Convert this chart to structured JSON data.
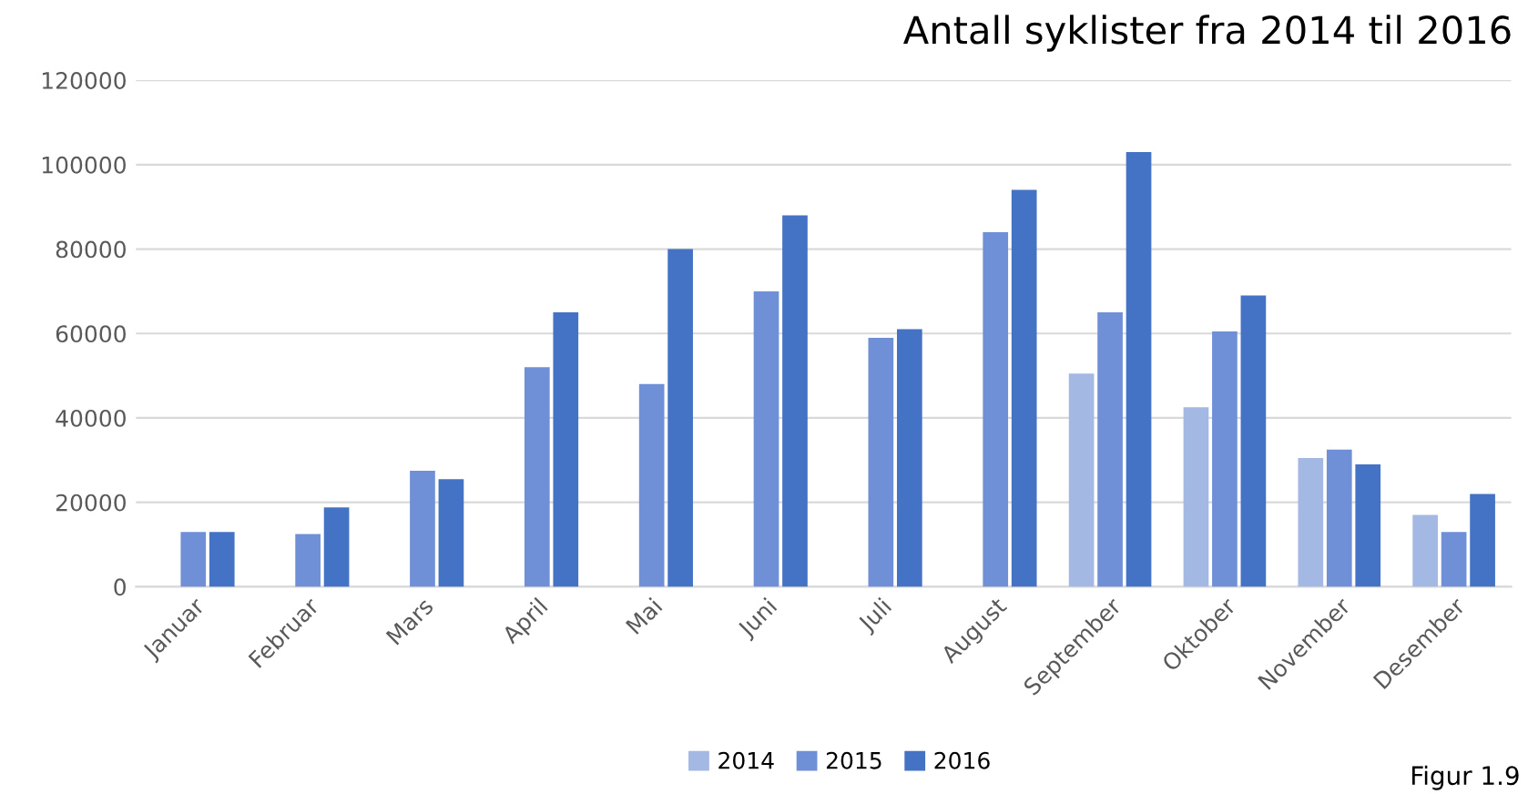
{
  "chart_data": {
    "type": "bar",
    "title": "Antall syklister fra 2014 til 2016",
    "categories": [
      "Januar",
      "Februar",
      "Mars",
      "April",
      "Mai",
      "Juni",
      "Juli",
      "August",
      "September",
      "Oktober",
      "November",
      "Desember"
    ],
    "series": [
      {
        "name": "2014",
        "color": "#a3b9e3",
        "values": [
          null,
          null,
          null,
          null,
          null,
          null,
          null,
          null,
          50500,
          42500,
          30500,
          17000
        ]
      },
      {
        "name": "2015",
        "color": "#6f8fd6",
        "values": [
          13000,
          12500,
          27500,
          52000,
          48000,
          70000,
          59000,
          84000,
          65000,
          60500,
          32500,
          13000
        ]
      },
      {
        "name": "2016",
        "color": "#4472c4",
        "values": [
          13000,
          18800,
          25500,
          65000,
          80000,
          88000,
          61000,
          94000,
          103000,
          69000,
          29000,
          22000
        ]
      }
    ],
    "ylim": [
      0,
      120000
    ],
    "yticks": [
      0,
      20000,
      40000,
      60000,
      80000,
      100000,
      120000
    ],
    "grid": "y",
    "legend": "bottom",
    "annotations": [
      "Figur 1.9"
    ]
  }
}
